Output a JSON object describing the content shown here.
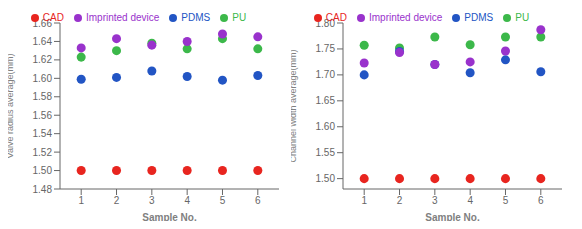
{
  "chart_data": [
    {
      "type": "scatter",
      "xlabel": "Sample No.",
      "ylabel": "Valve radius average(mm)",
      "x": [
        1,
        2,
        3,
        4,
        5,
        6
      ],
      "xlim": [
        0.4,
        6.6
      ],
      "xticks": [
        1,
        2,
        3,
        4,
        5,
        6
      ],
      "ylim": [
        1.48,
        1.66
      ],
      "yticks": [
        1.48,
        {
          "value": 1.5,
          "label": "1.50"
        },
        1.52,
        1.54,
        1.56,
        1.58,
        {
          "value": 1.6,
          "label": "1.60"
        },
        1.62,
        1.64,
        1.66
      ],
      "grid": false,
      "legend": "top",
      "marker": "circle",
      "series": [
        {
          "name": "CAD",
          "color": "#e8251f",
          "values": [
            1.5,
            1.5,
            1.5,
            1.5,
            1.5,
            1.5
          ]
        },
        {
          "name": "PU",
          "color": "#3cb84a",
          "values": [
            1.623,
            1.63,
            1.638,
            1.632,
            1.643,
            1.632
          ]
        },
        {
          "name": "PDMS",
          "color": "#2255c4",
          "values": [
            1.599,
            1.601,
            1.608,
            1.602,
            1.598,
            1.603
          ]
        },
        {
          "name": "Imprinted device",
          "color": "#9932CC",
          "values": [
            1.633,
            1.643,
            1.636,
            1.64,
            1.648,
            1.645
          ]
        }
      ]
    },
    {
      "type": "scatter",
      "xlabel": "Sample No.",
      "ylabel": "Channel width average(mm)",
      "x": [
        1,
        2,
        3,
        4,
        5,
        6
      ],
      "xlim": [
        0.4,
        6.6
      ],
      "xticks": [
        1,
        2,
        3,
        4,
        5,
        6
      ],
      "ylim": [
        1.48,
        1.8
      ],
      "yticks": [
        {
          "value": 1.5,
          "label": "1.50"
        },
        1.55,
        {
          "value": 1.6,
          "label": "1.60"
        },
        1.65,
        {
          "value": 1.7,
          "label": "1.70"
        },
        1.75,
        {
          "value": 1.8,
          "label": "1.80"
        }
      ],
      "grid": false,
      "legend": "top",
      "marker": "circle",
      "series": [
        {
          "name": "CAD",
          "color": "#e8251f",
          "values": [
            1.5,
            1.5,
            1.5,
            1.5,
            1.5,
            1.5
          ]
        },
        {
          "name": "PU",
          "color": "#3cb84a",
          "values": [
            1.757,
            1.752,
            1.773,
            1.758,
            1.773,
            1.773
          ]
        },
        {
          "name": "PDMS",
          "color": "#2255c4",
          "values": [
            1.7,
            1.745,
            1.72,
            1.704,
            1.729,
            1.706
          ]
        },
        {
          "name": "Imprinted device",
          "color": "#9932CC",
          "values": [
            1.723,
            1.743,
            1.72,
            1.725,
            1.746,
            1.787
          ]
        }
      ]
    }
  ]
}
